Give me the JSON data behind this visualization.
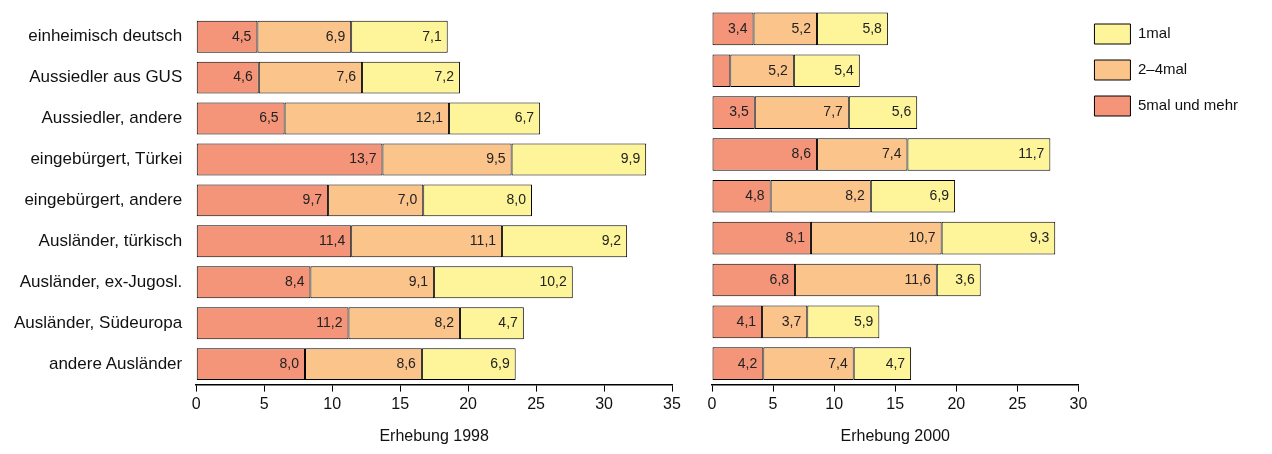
{
  "chart_data": [
    {
      "type": "bar",
      "orientation": "horizontal",
      "stacked": true,
      "xlabel": "Erhebung 1998",
      "categories": [
        "einheimisch deutsch",
        "Aussiedler aus GUS",
        "Aussiedler, andere",
        "eingebürgert, Türkei",
        "eingebürgert, andere",
        "Ausländer, türkisch",
        "Ausländer, ex-Jugosl.",
        "Ausländer, Südeuropa",
        "andere Ausländer"
      ],
      "xlim": [
        0,
        35
      ],
      "xticks": [
        0,
        5,
        10,
        15,
        20,
        25,
        30,
        35
      ],
      "grid": false,
      "legend": false,
      "series": [
        {
          "color": "#f4957a",
          "values": [
            4.5,
            4.6,
            6.5,
            13.7,
            9.7,
            11.4,
            8.4,
            11.2,
            8.0
          ],
          "value_labels": [
            "4,5",
            "4,6",
            "6,5",
            "13,7",
            "9,7",
            "11,4",
            "8,4",
            "11,2",
            "8,0"
          ]
        },
        {
          "color": "#fbc48a",
          "values": [
            6.9,
            7.6,
            12.1,
            9.5,
            7.0,
            11.1,
            9.1,
            8.2,
            8.6
          ],
          "value_labels": [
            "6,9",
            "7,6",
            "12,1",
            "9,5",
            "7,0",
            "11,1",
            "9,1",
            "8,2",
            "8,6"
          ]
        },
        {
          "color": "#fef59a",
          "values": [
            7.1,
            7.2,
            6.7,
            9.9,
            8.0,
            9.2,
            10.2,
            4.7,
            6.9
          ],
          "value_labels": [
            "7,1",
            "7,2",
            "6,7",
            "9,9",
            "8,0",
            "9,2",
            "10,2",
            "4,7",
            "6,9"
          ]
        }
      ]
    },
    {
      "type": "bar",
      "orientation": "horizontal",
      "stacked": true,
      "xlabel": "Erhebung 2000",
      "categories": [
        null,
        null,
        null,
        null,
        null,
        null,
        null,
        null,
        null
      ],
      "xlim": [
        0,
        30
      ],
      "xticks": [
        0,
        5,
        10,
        15,
        20,
        25,
        30
      ],
      "grid": false,
      "legend": "top right",
      "tick_labels": "x",
      "series": [
        {
          "name": "5mal und mehr",
          "color": "#f4957a",
          "values": [
            3.4,
            1.5,
            3.5,
            8.6,
            4.8,
            8.1,
            6.8,
            4.1,
            4.2
          ],
          "value_labels": [
            "3,4",
            null,
            "3,5",
            "8,6",
            "4,8",
            "8,1",
            "6,8",
            "4,1",
            "4,2"
          ]
        },
        {
          "name": "2–4mal",
          "color": "#fbc48a",
          "values": [
            5.2,
            5.2,
            7.7,
            7.4,
            8.2,
            10.7,
            11.6,
            3.7,
            7.4
          ],
          "value_labels": [
            "5,2",
            "5,2",
            "7,7",
            "7,4",
            "8,2",
            "10,7",
            "11,6",
            "3,7",
            "7,4"
          ]
        },
        {
          "name": "1mal",
          "color": "#fef59a",
          "values": [
            5.8,
            5.4,
            5.6,
            11.7,
            6.9,
            9.3,
            3.6,
            5.9,
            4.7
          ],
          "value_labels": [
            "5,8",
            "5,4",
            "5,6",
            "11,7",
            "6,9",
            "9,3",
            "3,6",
            "5,9",
            "4,7"
          ]
        }
      ]
    }
  ]
}
